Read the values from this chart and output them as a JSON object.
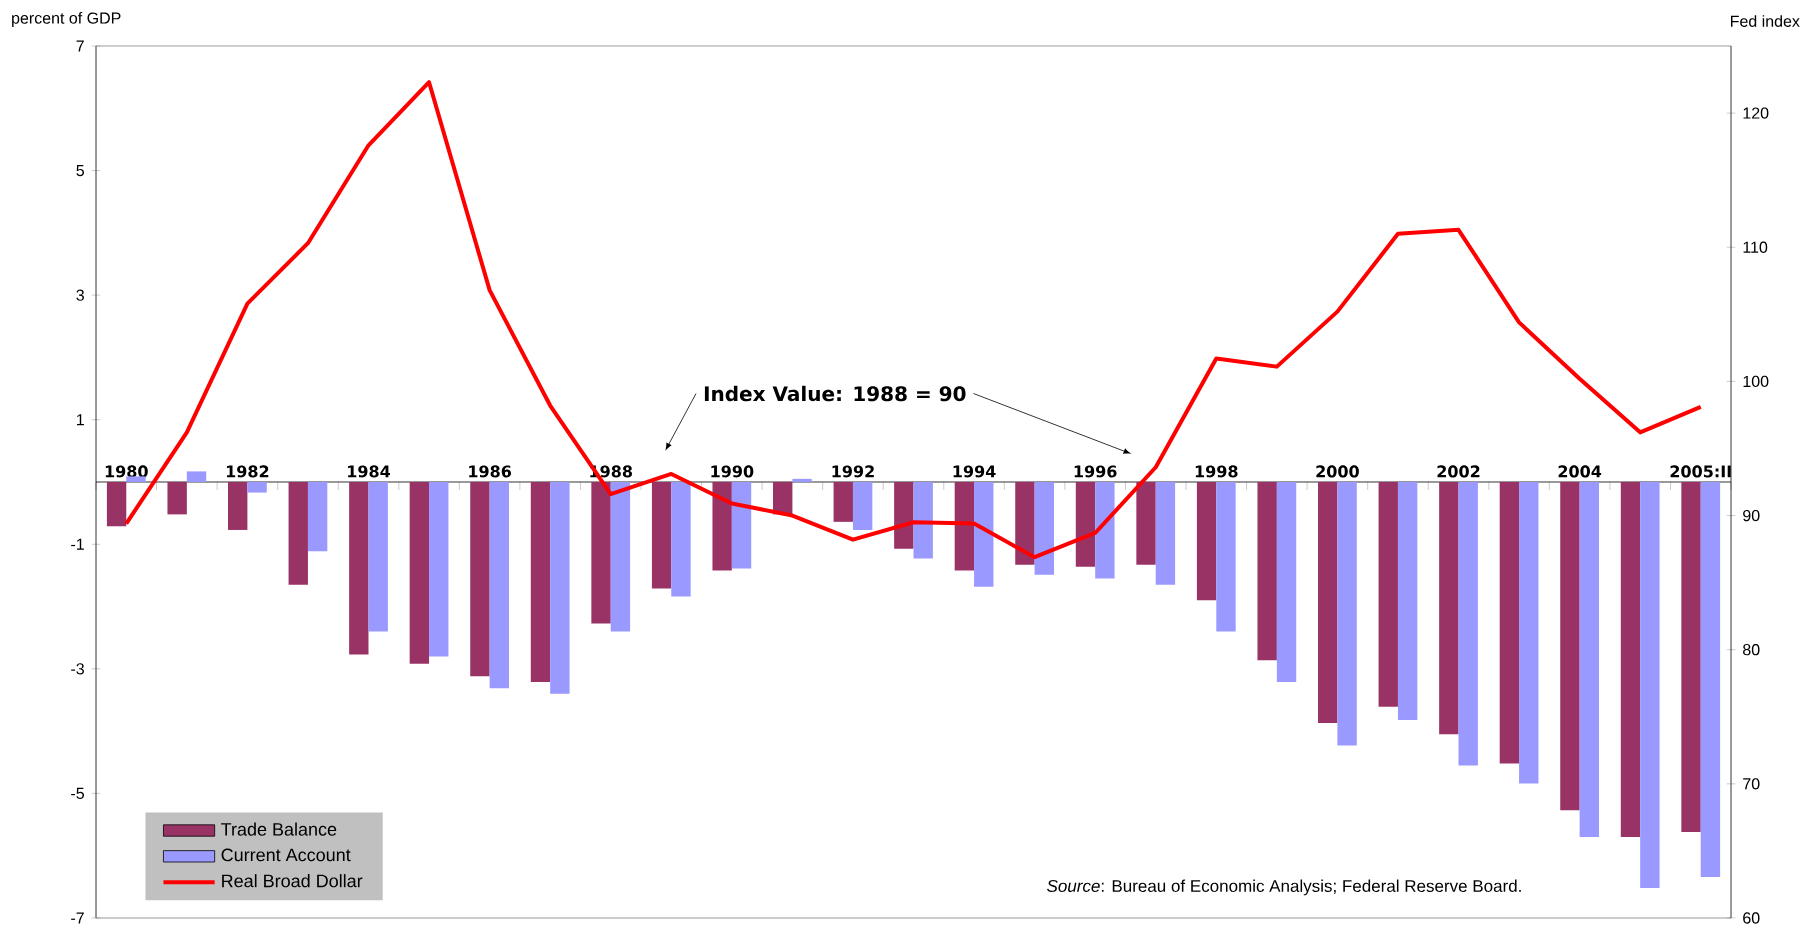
{
  "chart_data": {
    "type": "bar",
    "categories": [
      "1980",
      null,
      "1982",
      null,
      "1984",
      null,
      "1986",
      null,
      "1988",
      null,
      "1990",
      null,
      "1992",
      null,
      "1994",
      null,
      "1996",
      null,
      "1998",
      null,
      "2000",
      null,
      "2002",
      null,
      "2004",
      null,
      "2005:II"
    ],
    "series": [
      {
        "name": "Trade Balance",
        "color": "#993366",
        "values": [
          -0.71,
          -0.52,
          -0.77,
          -1.65,
          -2.77,
          -2.92,
          -3.12,
          -3.21,
          -2.27,
          -1.71,
          -1.42,
          -0.52,
          -0.64,
          -1.07,
          -1.42,
          -1.33,
          -1.36,
          -1.33,
          -1.9,
          -2.86,
          -3.87,
          -3.61,
          -4.05,
          -4.52,
          -5.27,
          -5.7,
          -5.62
        ]
      },
      {
        "name": "Current Account",
        "color": "#9999ff",
        "values": [
          0.09,
          0.17,
          -0.17,
          -1.11,
          -2.4,
          -2.8,
          -3.31,
          -3.4,
          -2.4,
          -1.84,
          -1.39,
          0.05,
          -0.77,
          -1.23,
          -1.68,
          -1.49,
          -1.55,
          -1.65,
          -2.4,
          -3.21,
          -4.23,
          -3.82,
          -4.55,
          -4.84,
          -5.7,
          -6.52,
          -6.34
        ]
      },
      {
        "name": "Real Broad Dollar",
        "type": "line",
        "axis": "y2",
        "color": "#ff0000",
        "values": [
          89.4,
          96.2,
          105.8,
          110.3,
          117.6,
          122.3,
          106.8,
          98.2,
          91.6,
          93.1,
          90.9,
          90.0,
          88.2,
          89.5,
          89.4,
          86.9,
          88.7,
          93.6,
          101.7,
          101.1,
          105.2,
          111.0,
          111.3,
          104.4,
          100.2,
          96.2,
          98.1
        ]
      }
    ],
    "ylabel": "percent of GDP",
    "y2label": "Fed index",
    "ylim": [
      -7,
      7
    ],
    "yticks": [
      -7,
      -5,
      -3,
      -1,
      1,
      3,
      5,
      7
    ],
    "y2lim": [
      60,
      125
    ],
    "y2ticks": [
      60,
      70,
      80,
      90,
      100,
      110,
      120
    ],
    "legend": "bottom left",
    "annotations": [
      "Index Value: 1988 = 90",
      "*Source*: Bureau of Economic Analysis; Federal Reserve Board."
    ]
  }
}
